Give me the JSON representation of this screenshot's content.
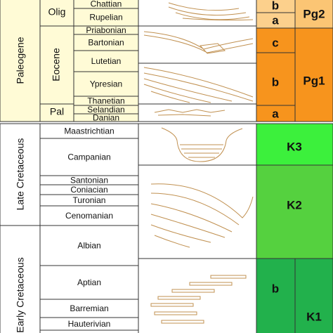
{
  "periods": [
    "Paleogene",
    "Late Cretaceous",
    "Early Cretaceous"
  ],
  "epochs": [
    "Olig",
    "Eocene",
    "Pal"
  ],
  "stages": [
    "Chattian",
    "Rupelian",
    "Priabonian",
    "Bartonian",
    "Lutetian",
    "Ypresian",
    "Thanetian",
    "Selandian",
    "Danian",
    "Maastrichtian",
    "Campanian",
    "Santonian",
    "Coniacian",
    "Turonian",
    "Cenomanian",
    "Albian",
    "Aptian",
    "Barremian",
    "Hauterivian"
  ],
  "subunits": [
    "b",
    "a",
    "c",
    "b",
    "a",
    "b"
  ],
  "units": [
    "Pg2",
    "Pg1",
    "K3",
    "K2",
    "K1"
  ]
}
